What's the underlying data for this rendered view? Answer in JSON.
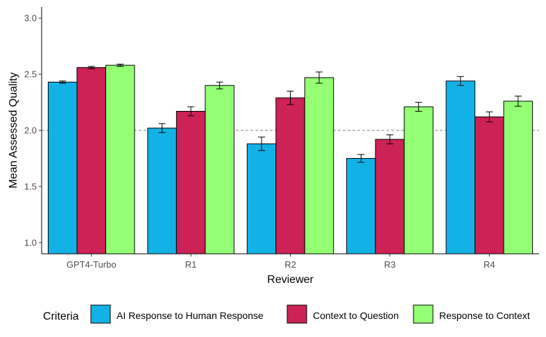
{
  "chart_data": {
    "type": "bar",
    "title": "",
    "xlabel": "Reviewer",
    "ylabel": "Mean Assessed Quality",
    "ylim": [
      0.9,
      3.1
    ],
    "yticks": [
      1.0,
      1.5,
      2.0,
      2.5,
      3.0
    ],
    "ytick_labels": [
      "1.0",
      "1.5",
      "2.0",
      "2.5",
      "3.0"
    ],
    "reference_line": 2.0,
    "grid": false,
    "categories": [
      "GPT4-Turbo",
      "R1",
      "R2",
      "R3",
      "R4"
    ],
    "series": [
      {
        "name": "AI Response to Human Response",
        "color": "#13b2e6",
        "values": [
          2.43,
          2.02,
          1.88,
          1.75,
          2.44
        ],
        "err": [
          0.01,
          0.04,
          0.06,
          0.035,
          0.04
        ]
      },
      {
        "name": "Context to Question",
        "color": "#cc2255",
        "values": [
          2.56,
          2.17,
          2.29,
          1.92,
          2.12
        ],
        "err": [
          0.01,
          0.04,
          0.06,
          0.04,
          0.045
        ]
      },
      {
        "name": "Response to Context",
        "color": "#94ff75",
        "values": [
          2.58,
          2.4,
          2.47,
          2.21,
          2.26
        ],
        "err": [
          0.01,
          0.03,
          0.05,
          0.04,
          0.045
        ]
      }
    ],
    "legend": {
      "title": "Criteria",
      "placement": "bottom",
      "labels": [
        "AI Response to Human Response",
        "Context to Question",
        "Response to Context"
      ]
    }
  }
}
